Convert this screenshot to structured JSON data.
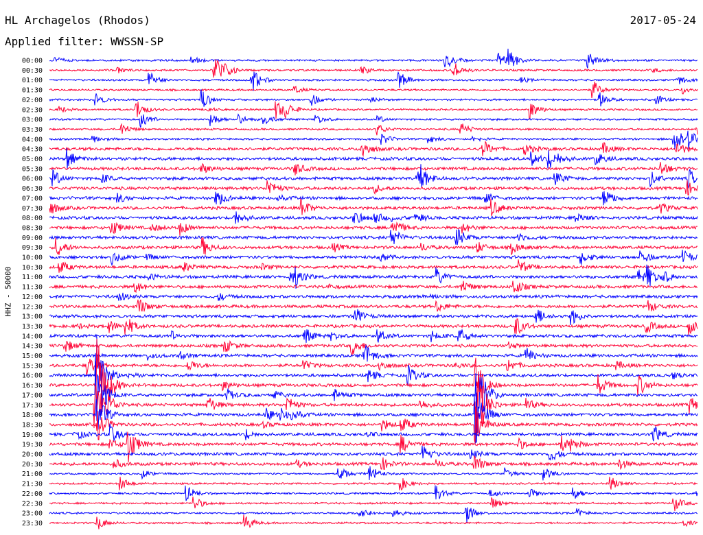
{
  "header": {
    "station": "HL Archagelos (Rhodos)",
    "date": "2017-05-24",
    "filter": "Applied filter: WWSSN-SP"
  },
  "chart_data": {
    "type": "line",
    "ylabel": "HHZ - 50000",
    "times": [
      "00:00",
      "00:30",
      "01:00",
      "01:30",
      "02:00",
      "02:30",
      "03:00",
      "03:30",
      "04:00",
      "04:30",
      "05:00",
      "05:30",
      "06:00",
      "06:30",
      "07:00",
      "07:30",
      "08:00",
      "08:30",
      "09:00",
      "09:30",
      "10:00",
      "10:30",
      "11:00",
      "11:30",
      "12:00",
      "12:30",
      "13:00",
      "13:30",
      "14:00",
      "14:30",
      "15:00",
      "15:30",
      "16:00",
      "16:30",
      "17:00",
      "17:30",
      "18:00",
      "18:30",
      "19:00",
      "19:30",
      "20:00",
      "20:30",
      "21:00",
      "21:30",
      "22:00",
      "22:30",
      "23:00",
      "23:30"
    ],
    "colors": [
      "#0000ff",
      "#ff0033"
    ]
  }
}
